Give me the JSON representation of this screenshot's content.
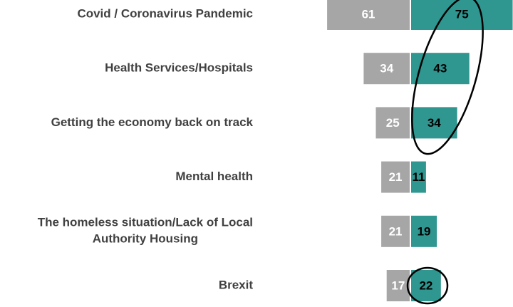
{
  "chart_data": {
    "type": "butterfly-bar",
    "categories": [
      "Covid / Coronavirus Pandemic",
      "Health Services/Hospitals",
      "Getting the economy back on track",
      "Mental health",
      "The homeless situation/Lack of Local Authority Housing",
      "Brexit"
    ],
    "series": [
      {
        "color": "#a6a6a6",
        "values": [
          61,
          34,
          25,
          21,
          21,
          17
        ]
      },
      {
        "color": "#2f9690",
        "values": [
          75,
          43,
          34,
          11,
          19,
          22
        ]
      }
    ]
  }
}
